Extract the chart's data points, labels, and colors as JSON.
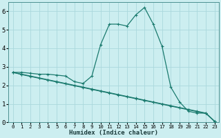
{
  "xlabel": "Humidex (Indice chaleur)",
  "bg_color": "#cceef0",
  "grid_color": "#aad8dc",
  "line_color": "#1a7a6e",
  "line1_x": [
    0,
    1,
    2,
    3,
    4,
    5,
    6,
    7,
    8,
    9,
    10,
    11,
    12,
    13,
    14,
    15,
    16,
    17,
    18,
    19,
    20,
    21,
    22,
    23
  ],
  "line1_y": [
    2.7,
    2.7,
    2.65,
    2.6,
    2.6,
    2.55,
    2.5,
    2.2,
    2.1,
    2.5,
    4.2,
    5.3,
    5.3,
    5.2,
    5.8,
    6.2,
    5.3,
    4.1,
    1.9,
    1.1,
    0.6,
    0.5,
    0.5,
    0.05
  ],
  "line2_x": [
    0,
    1,
    2,
    3,
    4,
    5,
    6,
    7,
    8,
    9,
    10,
    11,
    12,
    13,
    14,
    15,
    16,
    17,
    18,
    19,
    20,
    21,
    22,
    23
  ],
  "line2_y": [
    2.7,
    2.6,
    2.5,
    2.4,
    2.3,
    2.2,
    2.1,
    2.0,
    1.9,
    1.8,
    1.7,
    1.6,
    1.5,
    1.4,
    1.3,
    1.2,
    1.1,
    1.0,
    0.9,
    0.8,
    0.7,
    0.6,
    0.5,
    0.05
  ],
  "line3_x": [
    0,
    1,
    2,
    3,
    4,
    5,
    6,
    7,
    8,
    9,
    10,
    11,
    12,
    13,
    14,
    15,
    16,
    17,
    18,
    19,
    20,
    21,
    22,
    23
  ],
  "line3_y": [
    2.7,
    2.58,
    2.48,
    2.38,
    2.28,
    2.18,
    2.08,
    1.98,
    1.88,
    1.78,
    1.68,
    1.58,
    1.48,
    1.38,
    1.28,
    1.18,
    1.08,
    0.98,
    0.88,
    0.78,
    0.68,
    0.58,
    0.48,
    0.05
  ],
  "ylim": [
    0,
    6.5
  ],
  "xlim": [
    -0.5,
    23.5
  ],
  "yticks": [
    0,
    1,
    2,
    3,
    4,
    5,
    6
  ],
  "xticks": [
    0,
    1,
    2,
    3,
    4,
    5,
    6,
    7,
    8,
    9,
    10,
    11,
    12,
    13,
    14,
    15,
    16,
    17,
    18,
    19,
    20,
    21,
    22,
    23
  ],
  "xlabel_fontsize": 6.5,
  "ytick_fontsize": 6.5,
  "xtick_fontsize": 5.2,
  "lw": 0.9,
  "ms": 2.5,
  "mew": 0.8
}
